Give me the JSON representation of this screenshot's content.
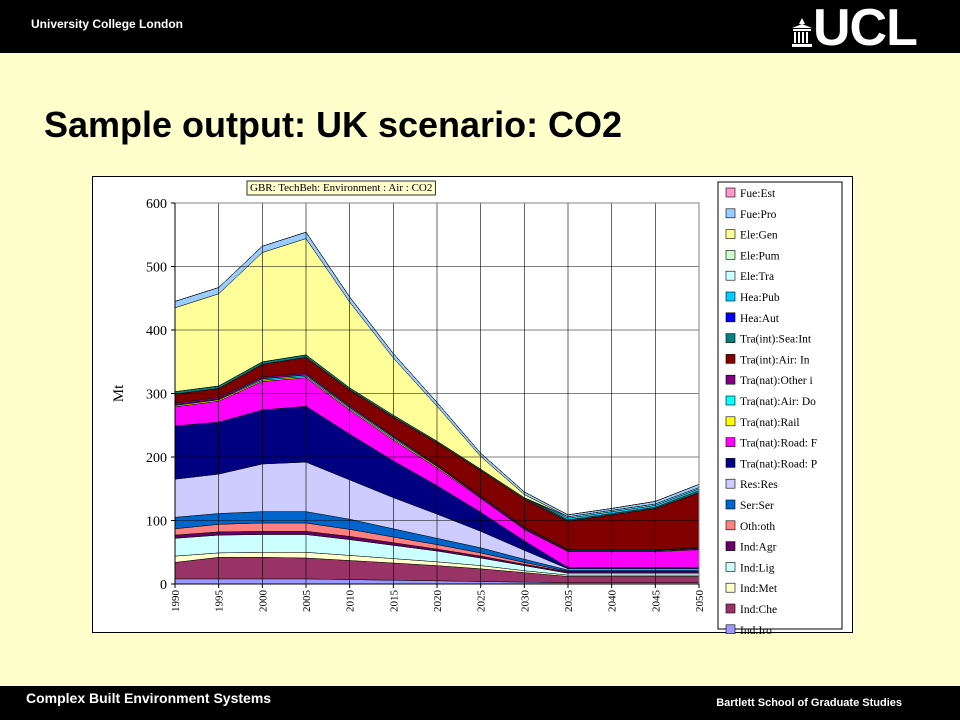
{
  "header": {
    "institution": "University College London",
    "logo_text": "UCL"
  },
  "slide": {
    "title": "Sample output: UK scenario: CO2"
  },
  "footer": {
    "left": "Complex Built Environment Systems",
    "right": "Bartlett School of Graduate Studies"
  },
  "chart_data": {
    "type": "area",
    "stacked": true,
    "title": "GBR: TechBeh: Environment : Air : CO2",
    "xlabel": "",
    "ylabel": "Mt",
    "ylim": [
      0,
      600
    ],
    "yticks": [
      0,
      100,
      200,
      300,
      400,
      500,
      600
    ],
    "grid": true,
    "legend_position": "right",
    "x": [
      1990,
      1995,
      2000,
      2005,
      2010,
      2015,
      2020,
      2025,
      2030,
      2035,
      2040,
      2045,
      2050
    ],
    "series": [
      {
        "name": "Ind:Iro",
        "color": "#9999ff",
        "values": [
          8,
          8,
          8,
          8,
          7,
          6,
          5,
          4,
          3,
          2,
          2,
          2,
          2
        ]
      },
      {
        "name": "Ind:Che",
        "color": "#993366",
        "values": [
          26,
          34,
          34,
          33,
          30,
          27,
          24,
          20,
          15,
          10,
          10,
          10,
          10
        ]
      },
      {
        "name": "Ind:Met",
        "color": "#ffffcc",
        "values": [
          10,
          7,
          8,
          9,
          8,
          7,
          6,
          5,
          3,
          2,
          2,
          2,
          2
        ]
      },
      {
        "name": "Ind:Lig",
        "color": "#ccffff",
        "values": [
          28,
          28,
          28,
          28,
          25,
          21,
          17,
          12,
          8,
          3,
          3,
          3,
          3
        ]
      },
      {
        "name": "Ind:Agr",
        "color": "#660066",
        "values": [
          5,
          5,
          5,
          5,
          5,
          4,
          3,
          3,
          2,
          2,
          2,
          2,
          2
        ]
      },
      {
        "name": "Oth:oth",
        "color": "#ff8080",
        "values": [
          10,
          12,
          13,
          13,
          11,
          9,
          7,
          5,
          3,
          1,
          1,
          1,
          1
        ]
      },
      {
        "name": "Ser:Ser",
        "color": "#0066cc",
        "values": [
          18,
          17,
          18,
          18,
          16,
          13,
          10,
          8,
          5,
          2,
          2,
          2,
          2
        ]
      },
      {
        "name": "Res:Res",
        "color": "#ccccff",
        "values": [
          60,
          62,
          75,
          78,
          62,
          49,
          38,
          26,
          14,
          2,
          2,
          2,
          2
        ]
      },
      {
        "name": "Tra(nat):Road: P",
        "color": "#000080",
        "values": [
          84,
          82,
          85,
          88,
          72,
          58,
          45,
          30,
          15,
          2,
          2,
          2,
          2
        ]
      },
      {
        "name": "Tra(nat):Road: F",
        "color": "#ff00ff",
        "values": [
          30,
          33,
          45,
          45,
          38,
          33,
          28,
          22,
          18,
          25,
          25,
          25,
          28
        ]
      },
      {
        "name": "Tra(nat):Rail",
        "color": "#ffff00",
        "values": [
          2,
          2,
          2,
          2,
          2,
          2,
          2,
          1,
          1,
          1,
          1,
          1,
          1
        ]
      },
      {
        "name": "Tra(nat):Air: Do",
        "color": "#00ffff",
        "values": [
          1,
          1,
          2,
          2,
          2,
          2,
          1,
          1,
          1,
          1,
          1,
          1,
          1
        ]
      },
      {
        "name": "Tra(nat):Other i",
        "color": "#800080",
        "values": [
          3,
          3,
          3,
          3,
          3,
          2,
          2,
          2,
          2,
          1,
          1,
          1,
          1
        ]
      },
      {
        "name": "Tra(int):Air: In",
        "color": "#800000",
        "values": [
          14,
          14,
          20,
          25,
          25,
          30,
          35,
          40,
          44,
          45,
          55,
          65,
          87
        ]
      },
      {
        "name": "Tra(int):Sea:Int",
        "color": "#008080",
        "values": [
          4,
          4,
          4,
          4,
          3,
          3,
          2,
          2,
          2,
          2,
          2,
          2,
          3
        ]
      },
      {
        "name": "Hea:Aut",
        "color": "#0000ff",
        "values": [
          0,
          0,
          0,
          0,
          0,
          0,
          0,
          0,
          0,
          0,
          0,
          0,
          0
        ]
      },
      {
        "name": "Hea:Pub",
        "color": "#00ccff",
        "values": [
          0,
          0,
          0,
          0,
          0,
          0,
          0,
          0,
          0,
          3,
          3,
          3,
          3
        ]
      },
      {
        "name": "Ele:Tra",
        "color": "#ccffff",
        "values": [
          0,
          0,
          0,
          0,
          0,
          0,
          0,
          0,
          0,
          2,
          2,
          2,
          2
        ]
      },
      {
        "name": "Ele:Pum",
        "color": "#ccffcc",
        "values": [
          0,
          0,
          0,
          0,
          0,
          0,
          0,
          0,
          0,
          0,
          0,
          0,
          0
        ]
      },
      {
        "name": "Ele:Gen",
        "color": "#ffff99",
        "values": [
          132,
          145,
          172,
          183,
          135,
          90,
          55,
          20,
          5,
          0,
          0,
          0,
          0
        ]
      },
      {
        "name": "Fue:Pro",
        "color": "#99ccff",
        "values": [
          10,
          10,
          10,
          10,
          8,
          7,
          6,
          5,
          4,
          3,
          3,
          4,
          5
        ]
      },
      {
        "name": "Fue:Est",
        "color": "#ff99cc",
        "values": [
          0,
          0,
          0,
          0,
          0,
          0,
          0,
          0,
          0,
          0,
          0,
          0,
          0
        ]
      }
    ]
  }
}
